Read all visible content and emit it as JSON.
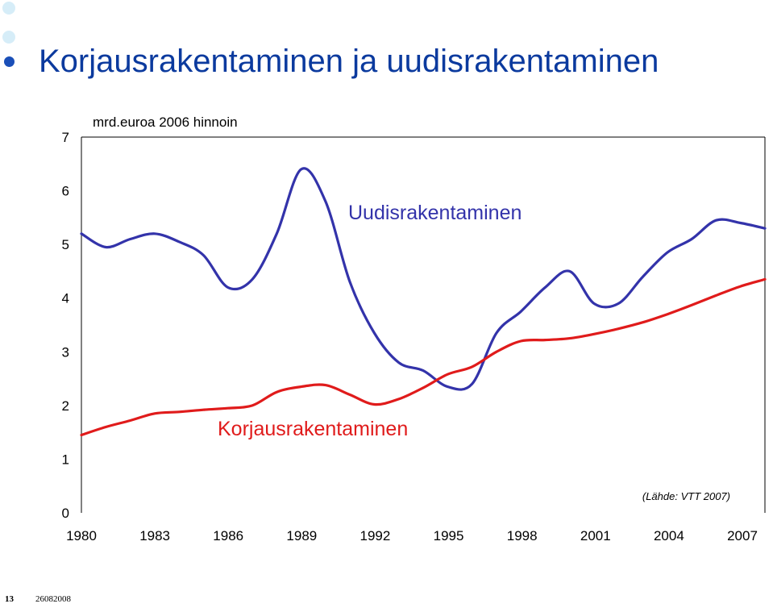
{
  "slide": {
    "title": "Korjausrakentaminen ja uudisrakentaminen",
    "page_number": "13",
    "date": "26082008",
    "title_color": "#0b3a9e",
    "bullet_color": "#1a4fb8",
    "decor_color": "#d6edf8"
  },
  "chart_data": {
    "type": "line",
    "title": "",
    "unit_label": "mrd.euroa 2006 hinnoin",
    "source": "(Lähde: VTT 2007)",
    "xlabel": "",
    "ylabel": "",
    "xlim": [
      1980,
      2008
    ],
    "ylim": [
      0,
      7
    ],
    "x_ticks": [
      "1980",
      "1983",
      "1986",
      "1989",
      "1992",
      "1995",
      "1998",
      "2001",
      "2004",
      "2007"
    ],
    "y_ticks": [
      "0",
      "1",
      "2",
      "3",
      "4",
      "5",
      "6",
      "7"
    ],
    "grid": false,
    "series": [
      {
        "name": "Uudisrakentaminen",
        "color": "#3333aa",
        "x": [
          1980,
          1981,
          1982,
          1983,
          1984,
          1985,
          1986,
          1987,
          1988,
          1989,
          1990,
          1991,
          1992,
          1993,
          1994,
          1995,
          1996,
          1997,
          1998,
          1999,
          2000,
          2001,
          2002,
          2003,
          2004,
          2005,
          2006,
          2007,
          2008
        ],
        "values": [
          5.2,
          4.95,
          5.1,
          5.2,
          5.05,
          4.8,
          4.2,
          4.35,
          5.2,
          6.4,
          5.8,
          4.3,
          3.35,
          2.8,
          2.65,
          2.35,
          2.4,
          3.35,
          3.75,
          4.2,
          4.5,
          3.9,
          3.9,
          4.4,
          4.85,
          5.1,
          5.45,
          5.4,
          5.3
        ]
      },
      {
        "name": "Korjausrakentaminen",
        "color": "#e01b1b",
        "x": [
          1980,
          1981,
          1982,
          1983,
          1984,
          1985,
          1986,
          1987,
          1988,
          1989,
          1990,
          1991,
          1992,
          1993,
          1994,
          1995,
          1996,
          1997,
          1998,
          1999,
          2000,
          2001,
          2002,
          2003,
          2004,
          2005,
          2006,
          2007,
          2008
        ],
        "values": [
          1.45,
          1.6,
          1.72,
          1.85,
          1.88,
          1.92,
          1.95,
          2.0,
          2.25,
          2.35,
          2.38,
          2.2,
          2.02,
          2.12,
          2.33,
          2.58,
          2.72,
          3.0,
          3.2,
          3.22,
          3.25,
          3.33,
          3.43,
          3.55,
          3.7,
          3.87,
          4.05,
          4.22,
          4.35
        ]
      }
    ]
  }
}
